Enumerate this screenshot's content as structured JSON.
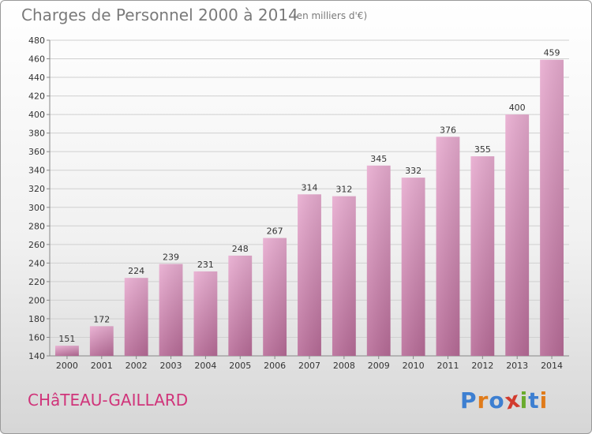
{
  "header": {
    "title": "Charges de Personnel 2000 à 2014",
    "subtitle": "(en milliers d'€)"
  },
  "footer": {
    "city": "CHâTEAU-GAILLARD",
    "brand": "Proxiti",
    "brand_colors": [
      "#3d7fd1",
      "#e07b1a",
      "#3d7fd1",
      "#d23b2e",
      "#6aab2d",
      "#3d7fd1",
      "#e07b1a"
    ]
  },
  "colors": {
    "bar_light": "#e8acd0",
    "bar_dark": "#b86c98",
    "grid": "#d0d0d0",
    "axis_text": "#333333",
    "label_text": "#333333"
  },
  "chart_data": {
    "type": "bar",
    "categories": [
      "2000",
      "2001",
      "2002",
      "2003",
      "2004",
      "2005",
      "2006",
      "2007",
      "2008",
      "2009",
      "2010",
      "2011",
      "2012",
      "2013",
      "2014"
    ],
    "values": [
      151,
      172,
      224,
      239,
      231,
      248,
      267,
      314,
      312,
      345,
      332,
      376,
      355,
      400,
      459
    ],
    "ylim": [
      140,
      480
    ],
    "yticks": [
      140,
      160,
      180,
      200,
      220,
      240,
      260,
      280,
      300,
      320,
      340,
      360,
      380,
      400,
      420,
      440,
      460,
      480
    ],
    "grid": true
  }
}
